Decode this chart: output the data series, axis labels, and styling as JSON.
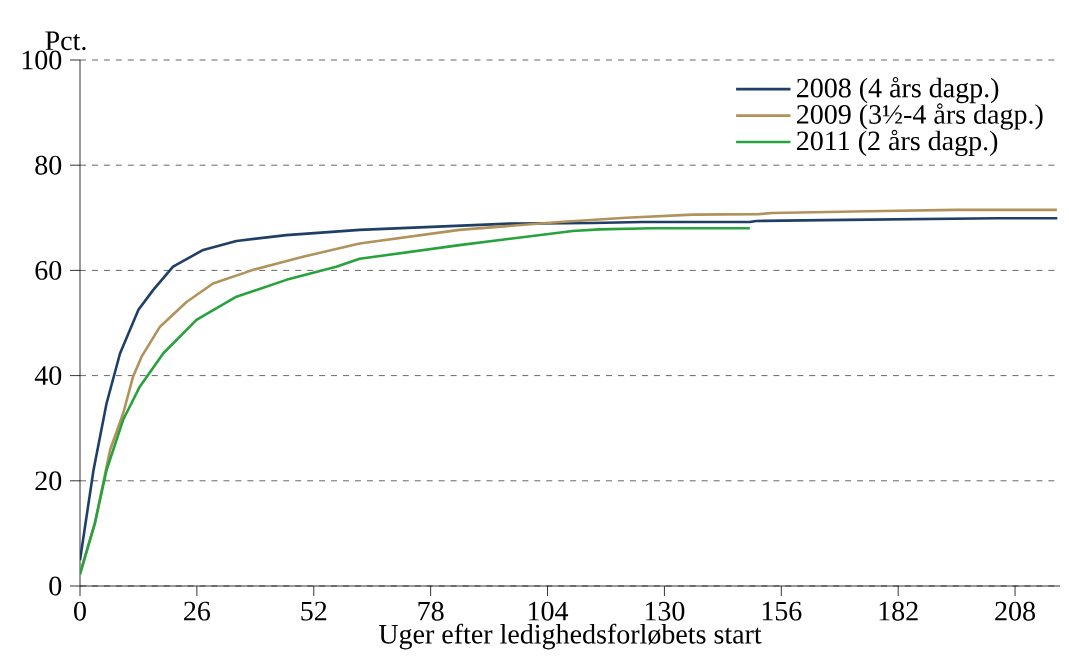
{
  "chart_data": {
    "type": "line",
    "ylabel": "Pct.",
    "xlabel": "Uger efter ledighedsforløbets start",
    "xlim": [
      0,
      218
    ],
    "xticks": [
      0,
      26,
      52,
      78,
      104,
      130,
      156,
      182,
      208
    ],
    "ylim": [
      0,
      100
    ],
    "yticks": [
      0,
      20,
      40,
      60,
      80,
      100
    ],
    "grid": "y",
    "legend": "top right",
    "line_style": "solid",
    "marker": "none",
    "series": [
      {
        "name": "2008 (4 års dagp.)",
        "color": "#1f3f66",
        "x": [
          0,
          3.0,
          5.9,
          8.9,
          13,
          16.3,
          20.7,
          27.4,
          34.8,
          45.9,
          62.2,
          95.6,
          114,
          125,
          149,
          150.4,
          170.4,
          204,
          217.4
        ],
        "values": [
          4.9,
          22,
          34.7,
          44.2,
          52.5,
          56.3,
          60.7,
          63.9,
          65.6,
          66.7,
          67.7,
          68.9,
          69.0,
          69.2,
          69.2,
          69.4,
          69.6,
          69.9,
          69.9
        ]
      },
      {
        "name": "2009 (3½-4 års dagp.)",
        "color": "#b0925a",
        "x": [
          0,
          3.3,
          6.7,
          9.6,
          11.8,
          13.7,
          17.8,
          23.7,
          29.6,
          38.5,
          49.6,
          62.2,
          84.4,
          106.7,
          121.5,
          136.3,
          151,
          154,
          178.5,
          194.8,
          217.3
        ],
        "values": [
          2.4,
          11.9,
          25.9,
          32.8,
          39.8,
          43.6,
          49.3,
          54.0,
          57.5,
          60.1,
          62.6,
          65.1,
          67.7,
          69.2,
          70.0,
          70.6,
          70.7,
          70.9,
          71.3,
          71.5,
          71.5
        ]
      },
      {
        "name": "2011 (2 års dagp.)",
        "color": "#28a23c",
        "x": [
          0,
          3.3,
          5.9,
          9.6,
          13.3,
          18.5,
          25.9,
          34.8,
          45.9,
          57,
          62.2,
          84.4,
          99.3,
          109.6,
          115.6,
          127.4,
          149
        ],
        "values": [
          2.2,
          11.9,
          22,
          31.6,
          37.9,
          44.2,
          50.6,
          55.0,
          58.2,
          60.7,
          62.2,
          64.8,
          66.4,
          67.5,
          67.8,
          68.0,
          68.0
        ]
      }
    ]
  }
}
